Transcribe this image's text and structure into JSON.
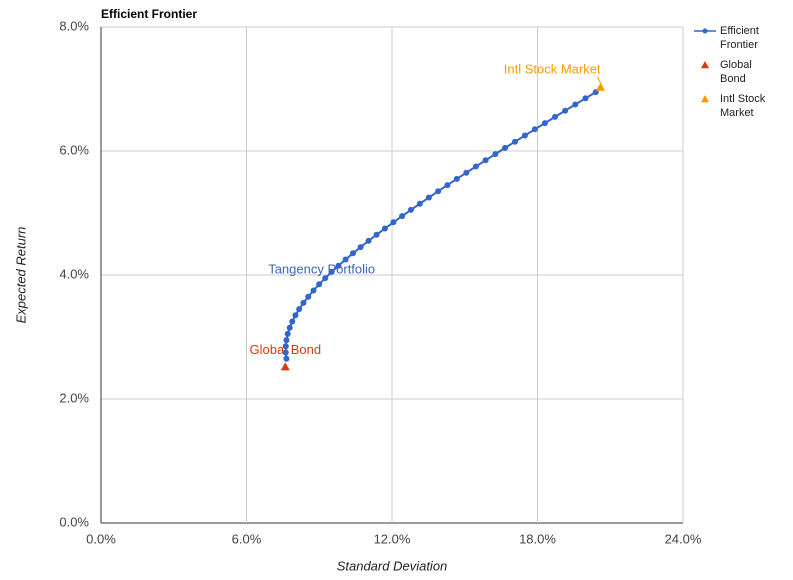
{
  "chart_data": {
    "type": "scatter",
    "title": "Efficient Frontier",
    "x_label": "Standard Deviation",
    "y_label": "Expected Return",
    "xlim": [
      0,
      24
    ],
    "ylim": [
      0,
      8
    ],
    "xticks": [
      {
        "value": 0,
        "label": "0.0%"
      },
      {
        "value": 6,
        "label": "6.0%"
      },
      {
        "value": 12,
        "label": "12.0%"
      },
      {
        "value": 18,
        "label": "18.0%"
      },
      {
        "value": 24,
        "label": "24.0%"
      }
    ],
    "yticks": [
      {
        "value": 0,
        "label": "0.0%"
      },
      {
        "value": 2,
        "label": "2.0%"
      },
      {
        "value": 4,
        "label": "4.0%"
      },
      {
        "value": 6,
        "label": "6.0%"
      },
      {
        "value": 8,
        "label": "8.0%"
      }
    ],
    "grid": true,
    "legend": "right",
    "series": [
      {
        "name": "Efficient Frontier",
        "color": "#3366cc",
        "marker": "line-dot",
        "x": [
          7.646,
          7.619,
          7.619,
          7.646,
          7.701,
          7.781,
          7.887,
          8.018,
          8.172,
          8.349,
          8.546,
          8.762,
          8.996,
          9.247,
          9.513,
          9.793,
          10.086,
          10.391,
          10.706,
          11.032,
          11.366,
          11.709,
          12.059,
          12.416,
          12.779,
          13.148,
          13.522,
          13.902,
          14.285,
          14.673,
          15.065,
          15.46,
          15.859,
          16.26,
          16.664,
          17.071,
          17.481,
          17.892,
          18.306,
          18.722,
          19.139,
          19.558,
          19.979,
          20.402
        ],
        "values": [
          2.65,
          2.75,
          2.85,
          2.95,
          3.05,
          3.15,
          3.25,
          3.35,
          3.45,
          3.55,
          3.65,
          3.75,
          3.85,
          3.95,
          4.05,
          4.15,
          4.25,
          4.35,
          4.45,
          4.55,
          4.65,
          4.75,
          4.85,
          4.95,
          5.05,
          5.15,
          5.25,
          5.35,
          5.45,
          5.55,
          5.65,
          5.75,
          5.85,
          5.95,
          6.05,
          6.15,
          6.25,
          6.35,
          6.45,
          6.55,
          6.65,
          6.75,
          6.85,
          6.95
        ]
      },
      {
        "name": "Global Bond",
        "color": "#dc3912",
        "marker": "triangle",
        "x": [
          7.6
        ],
        "values": [
          2.52
        ]
      },
      {
        "name": "Intl Stock Market",
        "color": "#ff9900",
        "marker": "triangle",
        "x": [
          20.6
        ],
        "values": [
          7.03
        ]
      }
    ],
    "annotations": [
      {
        "text": "Tangency Portfolio",
        "x": 9.513,
        "y": 4.05,
        "color": "#3f63c0"
      }
    ]
  }
}
